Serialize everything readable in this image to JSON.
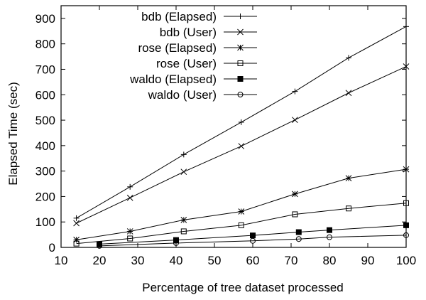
{
  "chart_data": {
    "type": "line",
    "xlabel": "Percentage of tree dataset processed",
    "ylabel": "Elapsed Time (sec)",
    "xlim": [
      10,
      100
    ],
    "ylim": [
      0,
      950
    ],
    "xticks": [
      10,
      20,
      30,
      40,
      50,
      60,
      70,
      80,
      90,
      100
    ],
    "yticks": [
      0,
      100,
      200,
      300,
      400,
      500,
      600,
      700,
      800,
      900
    ],
    "grid": false,
    "legend_position": "top-left",
    "series": [
      {
        "name": "bdb (Elapsed)",
        "marker": "plus",
        "color": "#000000",
        "x": [
          14,
          28,
          42,
          57,
          71,
          85,
          100
        ],
        "y": [
          115,
          238,
          365,
          492,
          613,
          745,
          868
        ]
      },
      {
        "name": "bdb (User)",
        "marker": "cross",
        "color": "#000000",
        "x": [
          14,
          28,
          42,
          57,
          71,
          85,
          100
        ],
        "y": [
          95,
          195,
          297,
          398,
          501,
          607,
          711
        ]
      },
      {
        "name": "rose (Elapsed)",
        "marker": "star",
        "color": "#000000",
        "x": [
          14,
          28,
          42,
          57,
          71,
          85,
          100
        ],
        "y": [
          30,
          63,
          108,
          141,
          210,
          272,
          307
        ]
      },
      {
        "name": "rose (User)",
        "marker": "square-open",
        "color": "#000000",
        "x": [
          14,
          28,
          42,
          57,
          71,
          85,
          100
        ],
        "y": [
          15,
          35,
          63,
          87,
          130,
          153,
          174
        ]
      },
      {
        "name": "waldo (Elapsed)",
        "marker": "square-filled",
        "color": "#000000",
        "x": [
          20,
          40,
          60,
          72,
          80,
          100
        ],
        "y": [
          13,
          29,
          47,
          60,
          68,
          87
        ]
      },
      {
        "name": "waldo (User)",
        "marker": "circle-open",
        "color": "#000000",
        "x": [
          20,
          40,
          60,
          72,
          80,
          100
        ],
        "y": [
          6,
          17,
          26,
          33,
          40,
          48
        ]
      }
    ]
  }
}
